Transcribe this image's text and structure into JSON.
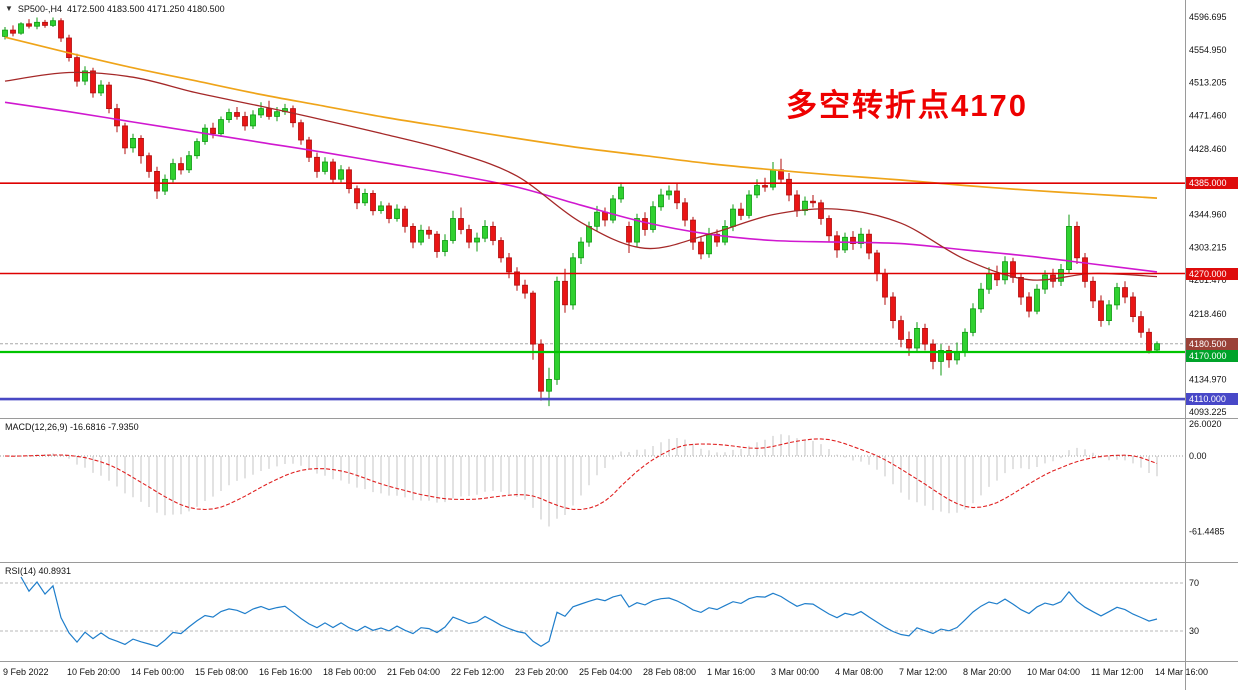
{
  "title": {
    "symbol": "SP500-,H4",
    "ohlc": "4172.500 4183.500 4171.250 4180.500"
  },
  "annotation": {
    "text": "多空转折点4170",
    "color": "#ee0000"
  },
  "chart_data": {
    "type": "candlestick",
    "symbol": "SP500-,H4",
    "timeframe": "H4",
    "style": {
      "up_fill": "#2fd130",
      "up_stroke": "#0c9a10",
      "down_fill": "#ea1515",
      "down_stroke": "#b00d0d",
      "macd_hist": "#c6c6c6",
      "macd_signal": "#e02020",
      "rsi_line": "#1f7ecb",
      "axis_text": "#111111"
    },
    "candles": [
      [
        4572,
        4584,
        4568,
        4580
      ],
      [
        4580,
        4586,
        4572,
        4576
      ],
      [
        4576,
        4590,
        4574,
        4588
      ],
      [
        4588,
        4594,
        4582,
        4585
      ],
      [
        4585,
        4596,
        4581,
        4590
      ],
      [
        4590,
        4593,
        4583,
        4586
      ],
      [
        4586,
        4596,
        4584,
        4592
      ],
      [
        4592,
        4595,
        4565,
        4570
      ],
      [
        4570,
        4574,
        4540,
        4545
      ],
      [
        4545,
        4550,
        4508,
        4515
      ],
      [
        4515,
        4534,
        4510,
        4528
      ],
      [
        4528,
        4532,
        4494,
        4500
      ],
      [
        4500,
        4516,
        4496,
        4510
      ],
      [
        4510,
        4514,
        4474,
        4480
      ],
      [
        4480,
        4486,
        4450,
        4458
      ],
      [
        4458,
        4462,
        4422,
        4430
      ],
      [
        4430,
        4448,
        4424,
        4442
      ],
      [
        4442,
        4446,
        4410,
        4420
      ],
      [
        4420,
        4424,
        4392,
        4400
      ],
      [
        4400,
        4406,
        4365,
        4375
      ],
      [
        4375,
        4396,
        4370,
        4390
      ],
      [
        4390,
        4416,
        4386,
        4410
      ],
      [
        4410,
        4418,
        4396,
        4402
      ],
      [
        4402,
        4426,
        4398,
        4420
      ],
      [
        4420,
        4442,
        4416,
        4438
      ],
      [
        4438,
        4460,
        4434,
        4455
      ],
      [
        4455,
        4462,
        4442,
        4448
      ],
      [
        4448,
        4470,
        4444,
        4466
      ],
      [
        4466,
        4480,
        4462,
        4475
      ],
      [
        4475,
        4482,
        4466,
        4470
      ],
      [
        4470,
        4476,
        4452,
        4458
      ],
      [
        4458,
        4478,
        4454,
        4472
      ],
      [
        4472,
        4488,
        4468,
        4480
      ],
      [
        4480,
        4490,
        4466,
        4470
      ],
      [
        4470,
        4482,
        4464,
        4476
      ],
      [
        4476,
        4486,
        4472,
        4480
      ],
      [
        4480,
        4484,
        4456,
        4462
      ],
      [
        4462,
        4466,
        4434,
        4440
      ],
      [
        4440,
        4444,
        4412,
        4418
      ],
      [
        4418,
        4424,
        4392,
        4400
      ],
      [
        4400,
        4418,
        4396,
        4412
      ],
      [
        4412,
        4416,
        4384,
        4390
      ],
      [
        4390,
        4408,
        4386,
        4402
      ],
      [
        4402,
        4406,
        4372,
        4378
      ],
      [
        4378,
        4382,
        4352,
        4360
      ],
      [
        4360,
        4378,
        4356,
        4372
      ],
      [
        4372,
        4376,
        4344,
        4350
      ],
      [
        4350,
        4362,
        4346,
        4356
      ],
      [
        4356,
        4360,
        4334,
        4340
      ],
      [
        4340,
        4358,
        4336,
        4352
      ],
      [
        4352,
        4356,
        4322,
        4330
      ],
      [
        4330,
        4334,
        4302,
        4310
      ],
      [
        4310,
        4332,
        4306,
        4325
      ],
      [
        4325,
        4330,
        4314,
        4320
      ],
      [
        4320,
        4324,
        4290,
        4298
      ],
      [
        4298,
        4320,
        4292,
        4312
      ],
      [
        4312,
        4350,
        4308,
        4340
      ],
      [
        4340,
        4354,
        4320,
        4326
      ],
      [
        4326,
        4332,
        4302,
        4310
      ],
      [
        4310,
        4322,
        4298,
        4315
      ],
      [
        4315,
        4338,
        4310,
        4330
      ],
      [
        4330,
        4336,
        4306,
        4312
      ],
      [
        4312,
        4316,
        4284,
        4290
      ],
      [
        4290,
        4296,
        4264,
        4272
      ],
      [
        4272,
        4278,
        4248,
        4255
      ],
      [
        4255,
        4262,
        4238,
        4245
      ],
      [
        4245,
        4248,
        4160,
        4180
      ],
      [
        4180,
        4186,
        4108,
        4120
      ],
      [
        4120,
        4150,
        4101,
        4135
      ],
      [
        4135,
        4266,
        4128,
        4260
      ],
      [
        4260,
        4276,
        4220,
        4230
      ],
      [
        4230,
        4296,
        4224,
        4290
      ],
      [
        4290,
        4316,
        4282,
        4310
      ],
      [
        4310,
        4336,
        4304,
        4330
      ],
      [
        4330,
        4356,
        4324,
        4348
      ],
      [
        4348,
        4354,
        4330,
        4338
      ],
      [
        4338,
        4370,
        4334,
        4365
      ],
      [
        4365,
        4386,
        4360,
        4380
      ],
      [
        4330,
        4336,
        4296,
        4310
      ],
      [
        4310,
        4346,
        4304,
        4340
      ],
      [
        4340,
        4348,
        4318,
        4326
      ],
      [
        4326,
        4362,
        4322,
        4355
      ],
      [
        4355,
        4378,
        4350,
        4370
      ],
      [
        4370,
        4382,
        4364,
        4375
      ],
      [
        4375,
        4385,
        4352,
        4360
      ],
      [
        4360,
        4366,
        4330,
        4338
      ],
      [
        4338,
        4342,
        4300,
        4310
      ],
      [
        4310,
        4316,
        4288,
        4295
      ],
      [
        4295,
        4328,
        4290,
        4320
      ],
      [
        4320,
        4326,
        4304,
        4310
      ],
      [
        4310,
        4338,
        4306,
        4330
      ],
      [
        4330,
        4358,
        4324,
        4352
      ],
      [
        4352,
        4360,
        4338,
        4344
      ],
      [
        4344,
        4376,
        4340,
        4370
      ],
      [
        4370,
        4390,
        4366,
        4382
      ],
      [
        4382,
        4392,
        4374,
        4380
      ],
      [
        4380,
        4412,
        4376,
        4402
      ],
      [
        4402,
        4416,
        4384,
        4390
      ],
      [
        4390,
        4398,
        4362,
        4370
      ],
      [
        4370,
        4376,
        4342,
        4350
      ],
      [
        4350,
        4368,
        4344,
        4362
      ],
      [
        4362,
        4370,
        4354,
        4360
      ],
      [
        4360,
        4364,
        4332,
        4340
      ],
      [
        4340,
        4344,
        4310,
        4318
      ],
      [
        4318,
        4324,
        4290,
        4300
      ],
      [
        4300,
        4322,
        4296,
        4316
      ],
      [
        4316,
        4324,
        4300,
        4308
      ],
      [
        4308,
        4328,
        4302,
        4320
      ],
      [
        4320,
        4326,
        4288,
        4296
      ],
      [
        4296,
        4300,
        4260,
        4270
      ],
      [
        4270,
        4276,
        4230,
        4240
      ],
      [
        4240,
        4246,
        4200,
        4210
      ],
      [
        4210,
        4216,
        4176,
        4186
      ],
      [
        4186,
        4196,
        4165,
        4175
      ],
      [
        4175,
        4208,
        4170,
        4200
      ],
      [
        4200,
        4206,
        4172,
        4180
      ],
      [
        4180,
        4186,
        4148,
        4158
      ],
      [
        4158,
        4180,
        4140,
        4172
      ],
      [
        4172,
        4178,
        4150,
        4160
      ],
      [
        4160,
        4182,
        4154,
        4170
      ],
      [
        4170,
        4200,
        4164,
        4195
      ],
      [
        4195,
        4232,
        4190,
        4225
      ],
      [
        4225,
        4258,
        4220,
        4250
      ],
      [
        4250,
        4278,
        4244,
        4270
      ],
      [
        4270,
        4280,
        4254,
        4262
      ],
      [
        4262,
        4292,
        4256,
        4285
      ],
      [
        4285,
        4290,
        4258,
        4265
      ],
      [
        4265,
        4270,
        4230,
        4240
      ],
      [
        4240,
        4246,
        4214,
        4222
      ],
      [
        4222,
        4256,
        4218,
        4250
      ],
      [
        4250,
        4274,
        4244,
        4268
      ],
      [
        4268,
        4276,
        4252,
        4260
      ],
      [
        4260,
        4282,
        4254,
        4275
      ],
      [
        4275,
        4345,
        4270,
        4330
      ],
      [
        4330,
        4336,
        4282,
        4290
      ],
      [
        4290,
        4296,
        4252,
        4260
      ],
      [
        4260,
        4266,
        4226,
        4235
      ],
      [
        4235,
        4242,
        4202,
        4210
      ],
      [
        4210,
        4236,
        4204,
        4230
      ],
      [
        4230,
        4258,
        4224,
        4252
      ],
      [
        4252,
        4260,
        4232,
        4240
      ],
      [
        4240,
        4246,
        4208,
        4215
      ],
      [
        4215,
        4222,
        4188,
        4195
      ],
      [
        4195,
        4200,
        4168,
        4172
      ],
      [
        4172.5,
        4183.5,
        4171.25,
        4180.5
      ]
    ],
    "overlays": [
      {
        "name": "ma-slow-orange",
        "color": "#efa419",
        "width": 1.7,
        "sample_step": 8,
        "values": [
          4571,
          4551,
          4532,
          4515,
          4498,
          4483,
          4468,
          4455,
          4442,
          4430,
          4420,
          4410,
          4402,
          4395,
          4389,
          4382,
          4376,
          4371,
          4366
        ]
      },
      {
        "name": "ma-mid-magenta",
        "color": "#d018d0",
        "width": 1.6,
        "sample_step": 8,
        "values": [
          4488,
          4476,
          4463,
          4450,
          4437,
          4424,
          4410,
          4396,
          4380,
          4357,
          4335,
          4320,
          4312,
          4310,
          4308,
          4300,
          4292,
          4282,
          4272
        ]
      },
      {
        "name": "ma-fast-darkred",
        "color": "#a52828",
        "width": 1.3,
        "sample_step": 8,
        "values": [
          4515,
          4526,
          4520,
          4500,
          4483,
          4465,
          4446,
          4425,
          4394,
          4335,
          4302,
          4320,
          4345,
          4352,
          4334,
          4288,
          4262,
          4270,
          4266
        ]
      }
    ],
    "levels": [
      {
        "value": 4385.0,
        "color": "#de0000",
        "width": 1.6,
        "label": "4385.000",
        "tag_bg": "#de0b0b"
      },
      {
        "value": 4270.0,
        "color": "#de0000",
        "width": 1.6,
        "label": "4270.000",
        "tag_bg": "#de0b0b"
      },
      {
        "value": 4170.0,
        "color": "#00c400",
        "width": 2.2,
        "label": "4170.000",
        "tag_bg": "#00a32a"
      },
      {
        "value": 4110.0,
        "color": "#4848c4",
        "width": 2.6,
        "label": "4110.000",
        "tag_bg": "#4848c8"
      }
    ],
    "current_price": {
      "value": 4180.5,
      "label": "4180.500",
      "tag_bg": "#9a4238",
      "line_color": "#a8a8a8"
    },
    "price_axis_ticks": [
      "4596.695",
      "4554.950",
      "4513.205",
      "4471.460",
      "4428.460",
      "4344.960",
      "4303.215",
      "4261.470",
      "4218.460",
      "4134.970",
      "4093.225"
    ],
    "time_axis_labels": [
      "9 Feb 2022",
      "10 Feb 20:00",
      "14 Feb 00:00",
      "15 Feb 08:00",
      "16 Feb 16:00",
      "18 Feb 00:00",
      "21 Feb 04:00",
      "22 Feb 12:00",
      "23 Feb 20:00",
      "25 Feb 04:00",
      "28 Feb 08:00",
      "1 Mar 16:00",
      "3 Mar 00:00",
      "4 Mar 08:00",
      "7 Mar 12:00",
      "8 Mar 20:00",
      "10 Mar 04:00",
      "11 Mar 12:00",
      "14 Mar 16:00"
    ],
    "indicators": {
      "macd": {
        "label": "MACD(12,26,9)",
        "display_values": "-16.6816 -7.9350",
        "fast": 12,
        "slow": 26,
        "signal": 9,
        "axis_ticks": [
          "26.0020",
          "0.00",
          "-61.4485"
        ]
      },
      "rsi": {
        "label": "RSI(14)",
        "display_value": "40.8931",
        "period": 14,
        "levels": [
          "70",
          "30"
        ]
      }
    }
  }
}
